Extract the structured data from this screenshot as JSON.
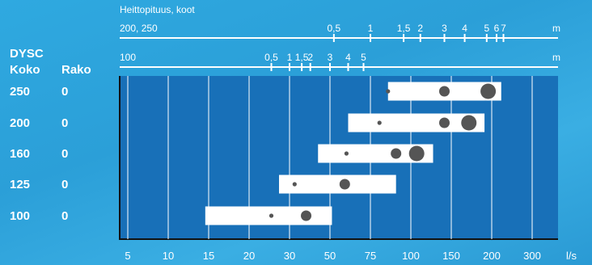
{
  "chart_data": {
    "type": "range-bar",
    "top_axis_title": "Heittopituus, koot",
    "axis_throw_large": {
      "label": "200, 250",
      "unit": "m",
      "ticks": [
        {
          "label": "0,5",
          "q": 52
        },
        {
          "label": "1",
          "q": 75
        },
        {
          "label": "1,5",
          "q": 95
        },
        {
          "label": "2",
          "q": 110
        },
        {
          "label": "3",
          "q": 140
        },
        {
          "label": "4",
          "q": 165
        },
        {
          "label": "5",
          "q": 193
        },
        {
          "label": "6",
          "q": 210
        },
        {
          "label": "7",
          "q": 225
        }
      ]
    },
    "axis_throw_small": {
      "label": "100",
      "unit": "m",
      "ticks": [
        {
          "label": "0,5",
          "q": 25
        },
        {
          "label": "1",
          "q": 30
        },
        {
          "label": "1,5",
          "q": 35
        },
        {
          "label": "2",
          "q": 39
        },
        {
          "label": "3",
          "q": 50
        },
        {
          "label": "4",
          "q": 60
        },
        {
          "label": "5",
          "q": 70
        }
      ]
    },
    "x_axis": {
      "unit": "l/s",
      "ticks": [
        5,
        10,
        15,
        20,
        30,
        50,
        75,
        100,
        150,
        200,
        300
      ]
    },
    "row_headers": {
      "size_line1": "DYSC",
      "size_line2": "Koko",
      "gap": "Rako"
    },
    "rows": [
      {
        "koko": "250",
        "rako": "0",
        "range": [
          85,
          220
        ],
        "points": [
          {
            "q": 85,
            "s": 1
          },
          {
            "q": 140,
            "s": 2
          },
          {
            "q": 195,
            "s": 3
          }
        ]
      },
      {
        "koko": "200",
        "rako": "0",
        "range": [
          60,
          190
        ],
        "points": [
          {
            "q": 80,
            "s": 1
          },
          {
            "q": 140,
            "s": 2
          },
          {
            "q": 170,
            "s": 3
          }
        ]
      },
      {
        "koko": "160",
        "rako": "0",
        "range": [
          43,
          125
        ],
        "points": [
          {
            "q": 59,
            "s": 1
          },
          {
            "q": 90,
            "s": 2
          },
          {
            "q": 106,
            "s": 3
          }
        ]
      },
      {
        "koko": "125",
        "rako": "0",
        "range": [
          27,
          90
        ],
        "points": [
          {
            "q": 32,
            "s": 1
          },
          {
            "q": 58,
            "s": 2
          }
        ]
      },
      {
        "koko": "100",
        "rako": "0",
        "range": [
          14.5,
          51
        ],
        "points": [
          {
            "q": 25,
            "s": 1
          },
          {
            "q": 37,
            "s": 2
          }
        ]
      }
    ]
  }
}
